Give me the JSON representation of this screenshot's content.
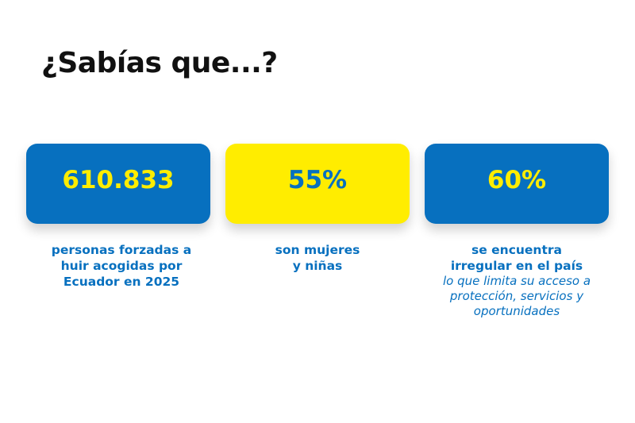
{
  "colors": {
    "brand_blue": "#0770bf",
    "brand_yellow": "#ffed00",
    "title_text": "#111111",
    "background": "#ffffff"
  },
  "title": "¿Sabías que...?",
  "stats": [
    {
      "value": "610.833",
      "caption_lines": [
        "personas forzadas a",
        "huir acogidas por",
        "Ecuador en 2025"
      ],
      "note_lines": []
    },
    {
      "value": "55%",
      "caption_lines": [
        "son mujeres",
        "y niñas"
      ],
      "note_lines": []
    },
    {
      "value": "60%",
      "caption_lines": [
        "se encuentra",
        "irregular en el país"
      ],
      "note_lines": [
        "lo que limita su acceso a",
        "protección, servicios y",
        "oportunidades"
      ]
    }
  ]
}
